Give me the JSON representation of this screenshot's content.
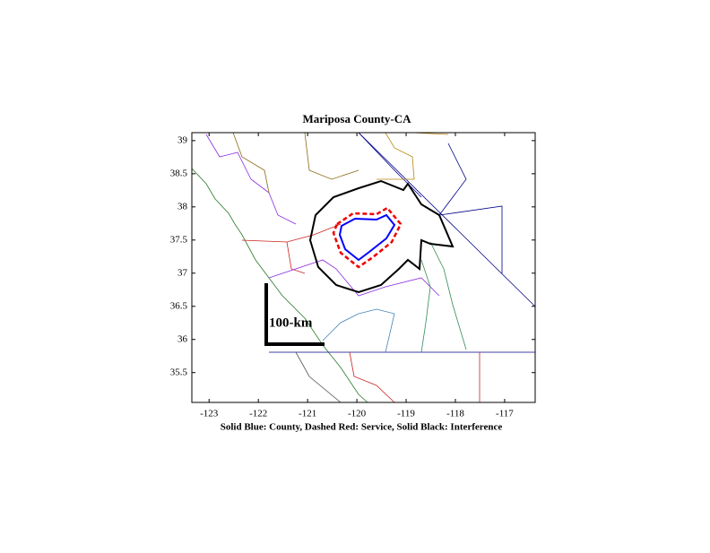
{
  "chart_data": {
    "type": "map",
    "title": "Mariposa County-CA",
    "xlabel": "Solid Blue: County, Dashed Red: Service, Solid Black: Interference",
    "annotation": "100-km",
    "xlim": [
      -123.35,
      -116.38
    ],
    "ylim": [
      35.05,
      39.12
    ],
    "xticks": [
      -123,
      -122,
      -121,
      -120,
      -119,
      -118,
      -117
    ],
    "yticks": [
      35.5,
      36,
      36.5,
      37,
      37.5,
      38,
      38.5,
      39
    ],
    "grid": false
  }
}
